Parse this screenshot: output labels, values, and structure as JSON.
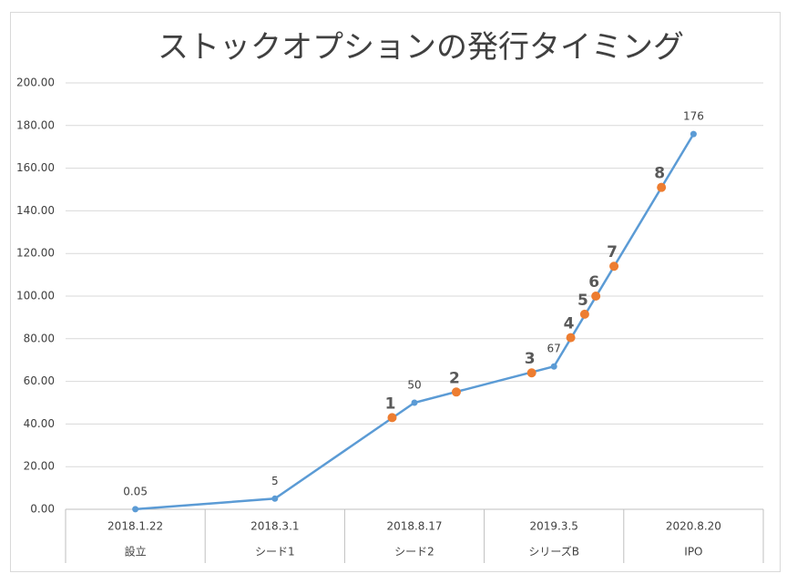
{
  "chart_data": {
    "type": "line",
    "title": "ストックオプションの発行タイミング",
    "categories": [
      [
        "2018.1.22",
        "設立"
      ],
      [
        "2018.3.1",
        "シード1"
      ],
      [
        "2018.8.17",
        "シード2"
      ],
      [
        "2019.3.5",
        "シリーズB"
      ],
      [
        "2020.8.20",
        "IPO"
      ]
    ],
    "series": [
      {
        "color": "#5b9bd5",
        "x": [
          0,
          1,
          2,
          3,
          4
        ],
        "values": [
          0.05,
          5,
          50,
          67,
          176
        ],
        "value_labels": [
          "0.05",
          "5",
          "50",
          "67",
          "176"
        ]
      },
      {
        "color": "#ed7d31",
        "markers_only": true,
        "x": [
          1.84,
          2.3,
          2.84,
          3.12,
          3.22,
          3.3,
          3.43,
          3.77
        ],
        "values": [
          43,
          55,
          64,
          80.5,
          91.5,
          100,
          114,
          151
        ],
        "value_labels": [
          "1",
          "2",
          "3",
          "4",
          "5",
          "6",
          "7",
          "8"
        ]
      }
    ],
    "ylim": [
      0,
      200
    ],
    "yticks": [
      {
        "value": 0,
        "label": "0.00"
      },
      {
        "value": 20,
        "label": "20.00"
      },
      {
        "value": 40,
        "label": "40.00"
      },
      {
        "value": 60,
        "label": "60.00"
      },
      {
        "value": 80,
        "label": "80.00"
      },
      {
        "value": 100,
        "label": "100.00"
      },
      {
        "value": 120,
        "label": "120.00"
      },
      {
        "value": 140,
        "label": "140.00"
      },
      {
        "value": 160,
        "label": "160.00"
      },
      {
        "value": 180,
        "label": "180.00"
      },
      {
        "value": 200,
        "label": "200.00"
      }
    ],
    "grid": true
  }
}
